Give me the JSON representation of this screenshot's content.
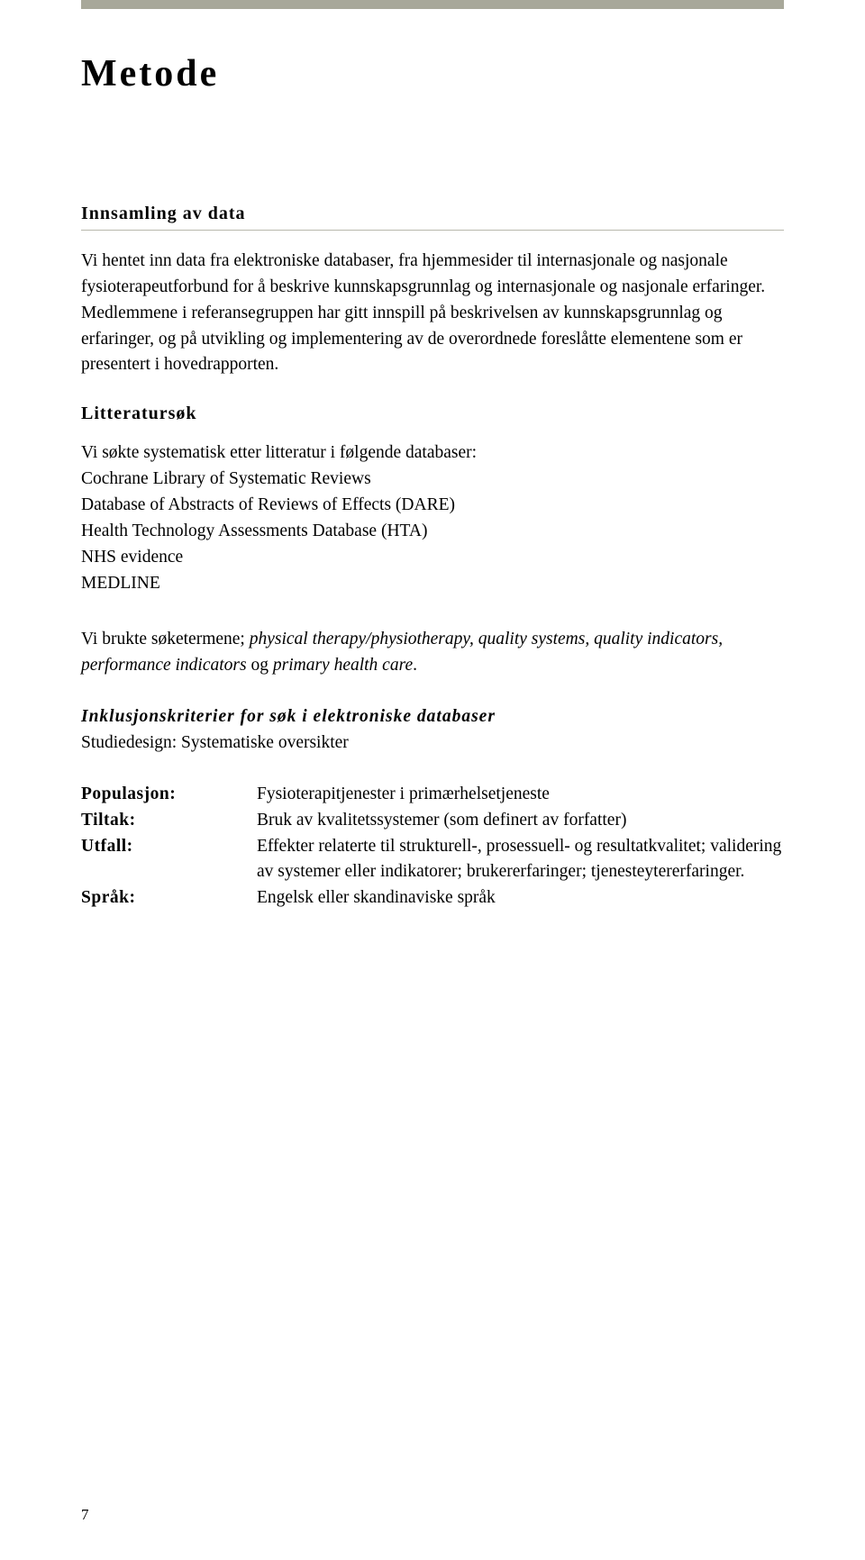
{
  "chapter_title": "Metode",
  "section_heading": "Innsamling av data",
  "intro_para": "Vi hentet inn data fra elektroniske databaser, fra hjemmesider til internasjonale og nasjonale fysioterapeutforbund for å beskrive kunnskapsgrunnlag og internasjonale og nasjonale erfaringer. Medlemmene i referansegruppen har gitt innspill på beskrivelsen av kunnskapsgrunnlag og erfaringer, og på utvikling og implementering av de overordnede foreslåtte elementene som er presentert i hovedrapporten.",
  "sub_heading_lit": "Litteratursøk",
  "lit_intro": "Vi søkte systematisk etter litteratur i følgende databaser:",
  "databases": [
    "Cochrane Library of Systematic Reviews",
    "Database of Abstracts of Reviews of Effects (DARE)",
    "Health Technology Assessments Database (HTA)",
    "NHS evidence",
    "MEDLINE"
  ],
  "search_terms_prefix": "Vi brukte søketermene; ",
  "search_terms_italic": "physical therapy/physiotherapy, quality systems, quality indicators, performance indicators ",
  "search_terms_and": "og ",
  "search_terms_last": "primary health care",
  "search_terms_period": ".",
  "criteria_title": "Inklusjonskriterier for søk i elektroniske databaser",
  "criteria_sub": "Studiedesign: Systematiske oversikter",
  "defs": [
    {
      "term": "Populasjon:",
      "val": "Fysioterapitjenester i primærhelsetjeneste"
    },
    {
      "term": "Tiltak:",
      "val": "Bruk av kvalitetssystemer (som definert av forfatter)"
    },
    {
      "term": "Utfall:",
      "val": "Effekter relaterte til strukturell-, prosessuell- og resultatkvalitet; validering av systemer eller indikatorer; brukererfaringer; tjenesteytererfaringer."
    },
    {
      "term": "Språk:",
      "val": "Engelsk eller skandinaviske språk"
    }
  ],
  "page_number": "7"
}
